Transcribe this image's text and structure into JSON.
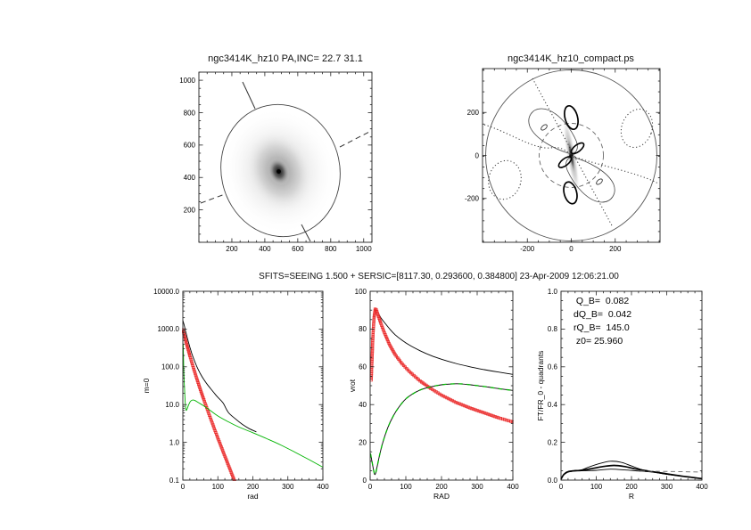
{
  "titles": {
    "bottom_row": "SFITS=SEEING 1.500 + SERSIC=[8117.30, 0.293600, 0.384800]  23-Apr-2009 12:06:21.00"
  },
  "chart_data": [
    {
      "id": "galaxy-image",
      "type": "heatmap",
      "title": "ngc3414K_hz10 PA,INC= 22.7 31.1",
      "xlim": [
        0,
        1050
      ],
      "ylim": [
        0,
        1050
      ],
      "xticks": [
        200,
        400,
        600,
        800,
        1000
      ],
      "yticks": [
        200,
        400,
        600,
        800,
        1000
      ],
      "description": "Grayscale galaxy image (dark core near x=470,y=420) with fitted ellipse overlay, solid line-of-nodes segments and dashed minor-axis segments"
    },
    {
      "id": "compact-field",
      "type": "heatmap",
      "title": "ngc3414K_hz10_compact.ps",
      "xlim": [
        -404,
        404
      ],
      "ylim": [
        -404,
        404
      ],
      "xticks": [
        -200,
        0,
        200
      ],
      "yticks": [
        -200,
        0,
        200
      ],
      "description": "Residual/velocity contour sketch: outer circle r=390, inner dashed circle, quadrupole lobes (thin solid), bold ellipses on minor axis, dotted zero contours, inclined gray disk streak through center"
    },
    {
      "id": "profile",
      "type": "line",
      "xlabel": "rad",
      "ylabel": "m=0",
      "xlim": [
        0,
        400
      ],
      "ylog": [
        0.1,
        10000
      ],
      "xticks": [
        0,
        100,
        200,
        300,
        400
      ],
      "yticks": [
        "0.1",
        "1.0",
        "10.0",
        "100.0",
        "1000.0",
        "10000.0"
      ],
      "series": [
        {
          "name": "total-model",
          "color": "#000000",
          "style": "solid",
          "points": [
            [
              0,
              1700
            ],
            [
              4,
              1250
            ],
            [
              8,
              870
            ],
            [
              12,
              620
            ],
            [
              16,
              450
            ],
            [
              20,
              335
            ],
            [
              25,
              235
            ],
            [
              30,
              172
            ],
            [
              40,
              101
            ],
            [
              50,
              66
            ],
            [
              60,
              46
            ],
            [
              70,
              34
            ],
            [
              80,
              26
            ],
            [
              90,
              20
            ],
            [
              100,
              15.5
            ],
            [
              115,
              11
            ],
            [
              130,
              6.2
            ],
            [
              150,
              4.2
            ],
            [
              170,
              3.0
            ],
            [
              190,
              2.3
            ],
            [
              210,
              1.9
            ]
          ]
        },
        {
          "name": "sersic-fit",
          "color": "#e62020",
          "style": "squares",
          "points": [
            [
              0,
              950
            ],
            [
              5,
              640
            ],
            [
              10,
              430
            ],
            [
              15,
              290
            ],
            [
              20,
              196
            ],
            [
              30,
              95
            ],
            [
              40,
              48
            ],
            [
              50,
              25
            ],
            [
              60,
              13.5
            ],
            [
              70,
              7.4
            ],
            [
              80,
              4.1
            ],
            [
              90,
              2.3
            ],
            [
              100,
              1.3
            ],
            [
              110,
              0.75
            ],
            [
              120,
              0.43
            ],
            [
              130,
              0.25
            ],
            [
              140,
              0.145
            ],
            [
              150,
              0.085
            ],
            [
              158,
              0.06
            ]
          ]
        },
        {
          "name": "residual-disk",
          "color": "#00b400",
          "style": "solid",
          "points": [
            [
              1,
              400
            ],
            [
              2,
              150
            ],
            [
              3,
              62
            ],
            [
              5,
              24
            ],
            [
              7,
              11
            ],
            [
              9,
              7.2
            ],
            [
              12,
              7.6
            ],
            [
              16,
              9.6
            ],
            [
              22,
              12.2
            ],
            [
              28,
              13.2
            ],
            [
              35,
              12.8
            ],
            [
              45,
              11.2
            ],
            [
              60,
              9.2
            ],
            [
              80,
              6.8
            ],
            [
              100,
              5.0
            ],
            [
              130,
              3.5
            ],
            [
              160,
              2.55
            ],
            [
              200,
              1.8
            ],
            [
              240,
              1.25
            ],
            [
              280,
              0.85
            ],
            [
              320,
              0.55
            ],
            [
              360,
              0.35
            ],
            [
              400,
              0.22
            ]
          ]
        }
      ]
    },
    {
      "id": "rotation",
      "type": "line",
      "xlabel": "RAD",
      "ylabel": "vrot",
      "xlim": [
        0,
        400
      ],
      "ylim": [
        0,
        100
      ],
      "xticks": [
        0,
        100,
        200,
        300,
        400
      ],
      "yticks": [
        0,
        20,
        40,
        60,
        80,
        100
      ],
      "series": [
        {
          "name": "vrot-total",
          "color": "#000000",
          "style": "solid",
          "points": [
            [
              3,
              53
            ],
            [
              5,
              62
            ],
            [
              8,
              76
            ],
            [
              11,
              85
            ],
            [
              14,
              89.5
            ],
            [
              17,
              90
            ],
            [
              22,
              88.5
            ],
            [
              30,
              86
            ],
            [
              40,
              83.5
            ],
            [
              55,
              80
            ],
            [
              70,
              77
            ],
            [
              90,
              74
            ],
            [
              110,
              71.5
            ],
            [
              140,
              68.5
            ],
            [
              170,
              66
            ],
            [
              200,
              64
            ],
            [
              240,
              61.8
            ],
            [
              280,
              60
            ],
            [
              320,
              58.5
            ],
            [
              360,
              57.2
            ],
            [
              400,
              56
            ]
          ]
        },
        {
          "name": "vrot-sersic",
          "color": "#e62020",
          "style": "squares",
          "points": [
            [
              3,
              53
            ],
            [
              5,
              63
            ],
            [
              8,
              77
            ],
            [
              11,
              86
            ],
            [
              14,
              90.5
            ],
            [
              17,
              90.3
            ],
            [
              22,
              87.5
            ],
            [
              30,
              83
            ],
            [
              40,
              78
            ],
            [
              55,
              71.5
            ],
            [
              70,
              66.5
            ],
            [
              90,
              61.5
            ],
            [
              110,
              57.5
            ],
            [
              140,
              52.5
            ],
            [
              170,
              48.5
            ],
            [
              200,
              45
            ],
            [
              240,
              41.2
            ],
            [
              280,
              38.2
            ],
            [
              320,
              35.6
            ],
            [
              360,
              33
            ],
            [
              400,
              30.8
            ]
          ]
        },
        {
          "name": "vrot-disk",
          "color": "#00b400",
          "style": "dash-on-black",
          "points": [
            [
              1,
              14
            ],
            [
              5,
              10
            ],
            [
              10,
              5
            ],
            [
              14,
              3
            ],
            [
              20,
              7.5
            ],
            [
              28,
              14.5
            ],
            [
              38,
              21.5
            ],
            [
              50,
              28
            ],
            [
              65,
              34
            ],
            [
              80,
              38.5
            ],
            [
              100,
              43
            ],
            [
              125,
              46.3
            ],
            [
              150,
              48.4
            ],
            [
              180,
              49.8
            ],
            [
              210,
              50.7
            ],
            [
              250,
              51
            ],
            [
              290,
              50.3
            ],
            [
              330,
              49.3
            ],
            [
              365,
              48.3
            ],
            [
              400,
              47.5
            ]
          ]
        }
      ]
    },
    {
      "id": "fourier-quadrants",
      "type": "line",
      "xlabel": "R",
      "ylabel": "FT/FR_0 - quadrants",
      "xlim": [
        0,
        400
      ],
      "ylim": [
        0,
        1
      ],
      "xticks": [
        0,
        100,
        200,
        300,
        400
      ],
      "yticks": [
        "0.0",
        "0.2",
        "0.4",
        "0.6",
        "0.8",
        "1.0"
      ],
      "annotations": [
        " Q_B=  0.082",
        "dQ_B=  0.042",
        "rQ_B=  145.0",
        " z0= 25.960"
      ],
      "series": [
        {
          "name": "quadrant-upper",
          "color": "#000000",
          "style": "solid",
          "points": [
            [
              0,
              0.005
            ],
            [
              8,
              0.03
            ],
            [
              20,
              0.045
            ],
            [
              40,
              0.05
            ],
            [
              60,
              0.055
            ],
            [
              80,
              0.07
            ],
            [
              110,
              0.088
            ],
            [
              140,
              0.1
            ],
            [
              170,
              0.095
            ],
            [
              200,
              0.075
            ],
            [
              230,
              0.055
            ],
            [
              260,
              0.045
            ],
            [
              300,
              0.032
            ],
            [
              340,
              0.022
            ],
            [
              370,
              0.014
            ],
            [
              400,
              0.008
            ]
          ]
        },
        {
          "name": "quadrant-mean",
          "color": "#000000",
          "style": "bold",
          "points": [
            [
              0,
              0.005
            ],
            [
              8,
              0.03
            ],
            [
              20,
              0.045
            ],
            [
              40,
              0.05
            ],
            [
              60,
              0.052
            ],
            [
              90,
              0.062
            ],
            [
              120,
              0.072
            ],
            [
              150,
              0.078
            ],
            [
              180,
              0.072
            ],
            [
              210,
              0.06
            ],
            [
              240,
              0.05
            ],
            [
              270,
              0.042
            ],
            [
              300,
              0.033
            ],
            [
              340,
              0.022
            ],
            [
              370,
              0.015
            ],
            [
              400,
              0.008
            ]
          ]
        },
        {
          "name": "quadrant-lower",
          "color": "#000000",
          "style": "solid",
          "points": [
            [
              0,
              0.005
            ],
            [
              8,
              0.028
            ],
            [
              20,
              0.042
            ],
            [
              40,
              0.048
            ],
            [
              70,
              0.05
            ],
            [
              100,
              0.052
            ],
            [
              140,
              0.058
            ],
            [
              180,
              0.054
            ],
            [
              220,
              0.048
            ],
            [
              260,
              0.042
            ],
            [
              300,
              0.031
            ],
            [
              340,
              0.021
            ],
            [
              370,
              0.014
            ],
            [
              400,
              0.008
            ]
          ]
        },
        {
          "name": "reference-level",
          "color": "#777777",
          "style": "dashed",
          "points": [
            [
              225,
              0.048
            ],
            [
              400,
              0.043
            ]
          ]
        }
      ]
    }
  ]
}
